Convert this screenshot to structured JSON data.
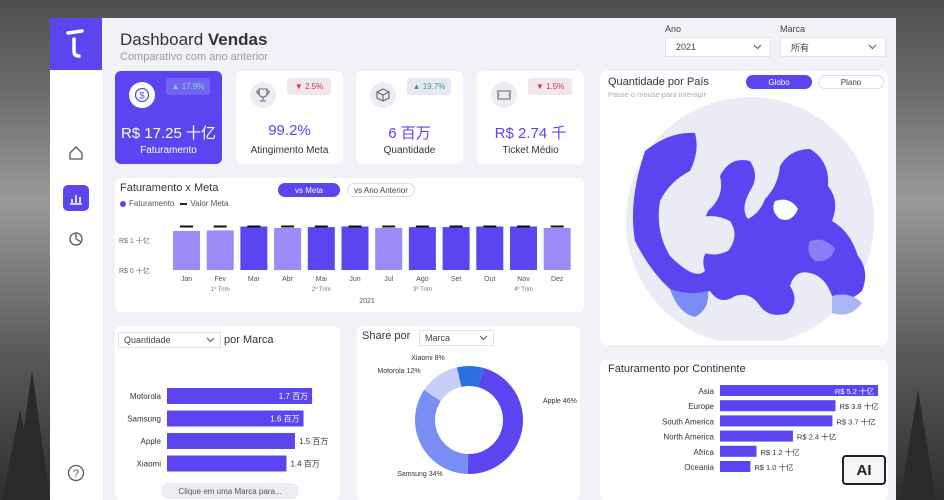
{
  "header": {
    "title_prefix": "Dashboard ",
    "title_bold": "Vendas",
    "subtitle": "Comparativo com ano anterior"
  },
  "filters": [
    {
      "label": "Ano",
      "value": "2021"
    },
    {
      "label": "Marca",
      "value": "所有"
    }
  ],
  "kpis": [
    {
      "value": "R$ 17.25 十亿",
      "caption": "Faturamento",
      "change": "17.9%",
      "direction": "up",
      "icon": "dollar-icon"
    },
    {
      "value": "99.2%",
      "caption": "Atingimento Meta",
      "change": "2.5%",
      "direction": "down",
      "icon": "trophy-icon"
    },
    {
      "value": "6 百万",
      "caption": "Quantidade",
      "change": "19.7%",
      "direction": "up",
      "icon": "box-icon"
    },
    {
      "value": "R$ 2.74 千",
      "caption": "Ticket Médio",
      "change": "1.5%",
      "direction": "down",
      "icon": "ticket-icon"
    }
  ],
  "fat_meta": {
    "title": "Faturamento x Meta",
    "toggle_on": "vs Meta",
    "toggle_off": "vs Ano Anterior",
    "legend_bar": "Faturamento",
    "legend_line": "Valor Meta",
    "year_label": "2021"
  },
  "map": {
    "title": "Quantidade por País",
    "subtitle": "Passe o mouse para interagir",
    "toggle_on": "Globo",
    "toggle_off": "Plano"
  },
  "marca": {
    "dropdown": "Quantidade",
    "title_suffix": "por Marca",
    "button": "Clique em uma Marca para..."
  },
  "share": {
    "title": "Share por",
    "dropdown": "Marca"
  },
  "continente": {
    "title": "Faturamento por Continente"
  },
  "chart_data": [
    {
      "type": "bar",
      "id": "faturamento-x-meta",
      "title": "Faturamento x Meta",
      "categories": [
        "Jan",
        "Fev",
        "Mar",
        "Abr",
        "Mai",
        "Jun",
        "Jul",
        "Ago",
        "Set",
        "Out",
        "Nov",
        "Dez"
      ],
      "quarters": [
        "1º Trim",
        "2º Trim",
        "3º Trim",
        "4º Trim"
      ],
      "series": [
        {
          "name": "Faturamento",
          "values": [
            1.3,
            1.32,
            1.45,
            1.4,
            1.43,
            1.45,
            1.4,
            1.43,
            1.43,
            1.45,
            1.45,
            1.4
          ]
        },
        {
          "name": "Valor Meta",
          "values": [
            1.45,
            1.45,
            1.45,
            1.45,
            1.45,
            1.45,
            1.45,
            1.45,
            1.45,
            1.45,
            1.45,
            1.45
          ]
        }
      ],
      "highlight_colors": {
        "dark": "#5b45f0",
        "light": "#9b8cf7"
      },
      "dark_bars": [
        false,
        false,
        true,
        false,
        true,
        true,
        false,
        true,
        true,
        true,
        true,
        false
      ],
      "yticks": [
        "R$ 0 十亿",
        "R$ 1 十亿"
      ],
      "ylim": [
        0,
        1.5
      ],
      "xlabel": "2021"
    },
    {
      "type": "bar",
      "id": "quantidade-por-marca",
      "orientation": "horizontal",
      "categories": [
        "Motorola",
        "Samsung",
        "Apple",
        "Xiaomi"
      ],
      "values": [
        1.7,
        1.6,
        1.5,
        1.4
      ],
      "labels": [
        "1.7 百万",
        "1.6 百万",
        "1.5 百万",
        "1.4 百万"
      ],
      "xlim": [
        0,
        2.1
      ]
    },
    {
      "type": "pie",
      "id": "share-por-marca",
      "categories": [
        "Apple",
        "Samsung",
        "Motorola",
        "Xiaomi"
      ],
      "values": [
        46,
        34,
        12,
        8
      ],
      "labels": [
        "Apple 46%",
        "Samsung 34%",
        "Motorola 12%",
        "Xiaomi 8%"
      ],
      "colors": [
        "#5b45f0",
        "#7a8df5",
        "#c7cff8",
        "#2d6fe0"
      ]
    },
    {
      "type": "bar",
      "id": "faturamento-por-continente",
      "orientation": "horizontal",
      "categories": [
        "Asia",
        "Europe",
        "South America",
        "North America",
        "Africa",
        "Oceania"
      ],
      "values": [
        5.2,
        3.8,
        3.7,
        2.4,
        1.2,
        1.0
      ],
      "labels": [
        "R$ 5.2 十亿",
        "R$ 3.8 十亿",
        "R$ 3.7 十亿",
        "R$ 2.4 十亿",
        "R$ 1.2 十亿",
        "R$ 1.0 十亿"
      ],
      "xlim": [
        0,
        5.2
      ]
    }
  ]
}
